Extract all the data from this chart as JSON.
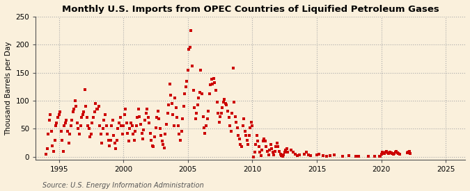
{
  "title": "Monthly U.S. Imports from OPEC Countries of Liquified Petroleum Gases",
  "ylabel": "Thousand Barrels per Day",
  "source": "Source: U.S. Energy Information Administration",
  "background_color": "#FAF0DC",
  "dot_color": "#CC0000",
  "xlim": [
    1993.2,
    2026.5
  ],
  "ylim": [
    -5,
    250
  ],
  "xticks": [
    1995,
    2000,
    2005,
    2010,
    2015,
    2020,
    2025
  ],
  "yticks": [
    0,
    50,
    100,
    150,
    200,
    250
  ],
  "scatter_x": [
    1994.0,
    1994.08,
    1994.17,
    1994.25,
    1994.33,
    1994.42,
    1994.5,
    1994.58,
    1994.67,
    1994.75,
    1994.83,
    1994.92,
    1995.0,
    1995.08,
    1995.17,
    1995.25,
    1995.33,
    1995.42,
    1995.5,
    1995.58,
    1995.67,
    1995.75,
    1995.83,
    1995.92,
    1996.0,
    1996.08,
    1996.17,
    1996.25,
    1996.33,
    1996.42,
    1996.5,
    1996.58,
    1996.67,
    1996.75,
    1996.83,
    1996.92,
    1997.0,
    1997.08,
    1997.17,
    1997.25,
    1997.33,
    1997.42,
    1997.5,
    1997.58,
    1997.67,
    1997.75,
    1997.83,
    1997.92,
    1998.0,
    1998.08,
    1998.17,
    1998.25,
    1998.33,
    1998.42,
    1998.5,
    1998.58,
    1998.67,
    1998.75,
    1998.83,
    1998.92,
    1999.0,
    1999.08,
    1999.17,
    1999.25,
    1999.33,
    1999.42,
    1999.5,
    1999.58,
    1999.67,
    1999.75,
    1999.83,
    1999.92,
    2000.0,
    2000.08,
    2000.17,
    2000.25,
    2000.33,
    2000.42,
    2000.5,
    2000.58,
    2000.67,
    2000.75,
    2000.83,
    2000.92,
    2001.0,
    2001.08,
    2001.17,
    2001.25,
    2001.33,
    2001.42,
    2001.5,
    2001.58,
    2001.67,
    2001.75,
    2001.83,
    2001.92,
    2002.0,
    2002.08,
    2002.17,
    2002.25,
    2002.33,
    2002.42,
    2002.5,
    2002.58,
    2002.67,
    2002.75,
    2002.83,
    2002.92,
    2003.0,
    2003.08,
    2003.17,
    2003.25,
    2003.33,
    2003.42,
    2003.5,
    2003.58,
    2003.67,
    2003.75,
    2003.83,
    2003.92,
    2004.0,
    2004.08,
    2004.17,
    2004.25,
    2004.33,
    2004.42,
    2004.5,
    2004.58,
    2004.67,
    2004.75,
    2004.83,
    2004.92,
    2005.0,
    2005.08,
    2005.17,
    2005.25,
    2005.33,
    2005.42,
    2005.5,
    2005.58,
    2005.67,
    2005.75,
    2005.83,
    2005.92,
    2006.0,
    2006.08,
    2006.17,
    2006.25,
    2006.33,
    2006.42,
    2006.5,
    2006.58,
    2006.67,
    2006.75,
    2006.83,
    2006.92,
    2007.0,
    2007.08,
    2007.17,
    2007.25,
    2007.33,
    2007.42,
    2007.5,
    2007.58,
    2007.67,
    2007.75,
    2007.83,
    2007.92,
    2008.0,
    2008.08,
    2008.17,
    2008.25,
    2008.33,
    2008.42,
    2008.5,
    2008.58,
    2008.67,
    2008.75,
    2008.83,
    2008.92,
    2009.0,
    2009.08,
    2009.17,
    2009.25,
    2009.33,
    2009.42,
    2009.5,
    2009.58,
    2009.67,
    2009.75,
    2009.83,
    2009.92,
    2010.0,
    2010.08,
    2010.17,
    2010.25,
    2010.33,
    2010.42,
    2010.5,
    2010.58,
    2010.67,
    2010.75,
    2010.83,
    2010.92,
    2011.0,
    2011.08,
    2011.17,
    2011.25,
    2011.33,
    2011.42,
    2011.5,
    2011.58,
    2011.67,
    2011.75,
    2011.83,
    2011.92,
    2012.0,
    2012.08,
    2012.17,
    2012.25,
    2012.33,
    2012.42,
    2012.5,
    2012.58,
    2012.67,
    2012.75,
    2013.0,
    2013.17,
    2013.33,
    2013.5,
    2013.67,
    2014.0,
    2014.17,
    2014.33,
    2014.5,
    2015.0,
    2015.17,
    2015.5,
    2015.75,
    2016.0,
    2016.33,
    2017.0,
    2017.5,
    2018.0,
    2018.25,
    2019.0,
    2019.5,
    2019.83,
    2019.92,
    2020.0,
    2020.08,
    2020.17,
    2020.25,
    2020.33,
    2020.42,
    2020.5,
    2020.58,
    2020.67,
    2020.75,
    2020.83,
    2020.92,
    2021.0,
    2021.08,
    2021.17,
    2021.25,
    2021.33,
    2021.42,
    2022.0,
    2022.08,
    2022.17,
    2022.25
  ],
  "scatter_y": [
    5,
    15,
    40,
    65,
    75,
    45,
    20,
    10,
    30,
    55,
    60,
    70,
    75,
    80,
    45,
    30,
    10,
    55,
    60,
    65,
    45,
    25,
    40,
    55,
    65,
    80,
    85,
    100,
    90,
    60,
    50,
    40,
    55,
    70,
    75,
    80,
    120,
    90,
    70,
    55,
    50,
    35,
    40,
    60,
    70,
    80,
    95,
    85,
    85,
    90,
    55,
    40,
    25,
    50,
    65,
    75,
    55,
    40,
    30,
    20,
    30,
    55,
    65,
    38,
    25,
    15,
    30,
    50,
    60,
    70,
    55,
    40,
    55,
    75,
    85,
    60,
    42,
    28,
    50,
    60,
    55,
    40,
    30,
    45,
    55,
    70,
    85,
    72,
    58,
    42,
    32,
    48,
    65,
    78,
    85,
    70,
    60,
    42,
    30,
    20,
    18,
    35,
    52,
    70,
    82,
    68,
    50,
    38,
    28,
    22,
    16,
    40,
    58,
    78,
    92,
    130,
    110,
    95,
    75,
    55,
    105,
    88,
    70,
    55,
    40,
    30,
    45,
    68,
    90,
    112,
    125,
    135,
    155,
    192,
    195,
    225,
    162,
    118,
    88,
    68,
    78,
    92,
    105,
    115,
    155,
    112,
    72,
    52,
    42,
    55,
    68,
    82,
    112,
    128,
    138,
    130,
    140,
    132,
    118,
    98,
    78,
    62,
    72,
    78,
    88,
    98,
    102,
    95,
    92,
    82,
    70,
    55,
    45,
    78,
    158,
    98,
    72,
    62,
    52,
    38,
    32,
    22,
    18,
    55,
    68,
    45,
    38,
    30,
    22,
    38,
    52,
    62,
    55,
    0,
    8,
    22,
    38,
    28,
    18,
    8,
    2,
    12,
    28,
    32,
    28,
    18,
    10,
    3,
    12,
    22,
    15,
    8,
    3,
    10,
    18,
    25,
    18,
    10,
    5,
    2,
    1,
    3,
    8,
    12,
    15,
    8,
    12,
    8,
    5,
    2,
    3,
    5,
    8,
    3,
    2,
    3,
    5,
    2,
    1,
    2,
    3,
    1,
    2,
    1,
    1,
    1,
    1,
    1,
    1,
    5,
    8,
    7,
    6,
    8,
    9,
    7,
    6,
    8,
    7,
    6,
    5,
    6,
    8,
    9,
    7,
    6,
    5,
    7,
    8,
    9,
    6
  ]
}
